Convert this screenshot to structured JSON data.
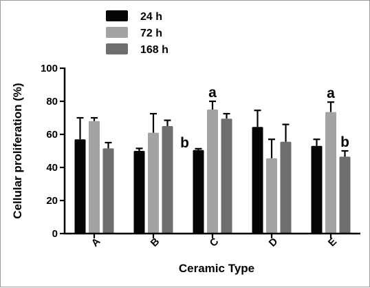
{
  "chart_data": {
    "type": "bar",
    "xlabel": "Ceramic Type",
    "ylabel": "Cellular proliferation (%)",
    "ylim": [
      0,
      100
    ],
    "yticks": [
      "0",
      "20",
      "40",
      "60",
      "80",
      "100"
    ],
    "categories": [
      "A",
      "B",
      "C",
      "D",
      "E"
    ],
    "series": [
      {
        "name": "24 h",
        "color": "#050505",
        "values": [
          57,
          50,
          50.5,
          64.5,
          53
        ],
        "errors": [
          13,
          1.5,
          0.8,
          10,
          4
        ]
      },
      {
        "name": "72 h",
        "color": "#a3a3a3",
        "values": [
          68,
          61,
          75,
          45.5,
          73.5
        ],
        "errors": [
          2,
          11.5,
          5,
          11.5,
          6
        ]
      },
      {
        "name": "168 h",
        "color": "#6e6e6e",
        "values": [
          51.5,
          65,
          69.5,
          55.5,
          46.5
        ],
        "errors": [
          3.5,
          3.5,
          3,
          10.5,
          3.5
        ]
      }
    ],
    "annotations": [
      {
        "category": "C",
        "series": "24 h",
        "text": "b",
        "side": "left"
      },
      {
        "category": "C",
        "series": "72 h",
        "text": "a",
        "side": "top"
      },
      {
        "category": "E",
        "series": "72 h",
        "text": "a",
        "side": "top"
      },
      {
        "category": "E",
        "series": "168 h",
        "text": "b",
        "side": "top"
      }
    ],
    "legend_position": "top-left",
    "grid": false
  }
}
